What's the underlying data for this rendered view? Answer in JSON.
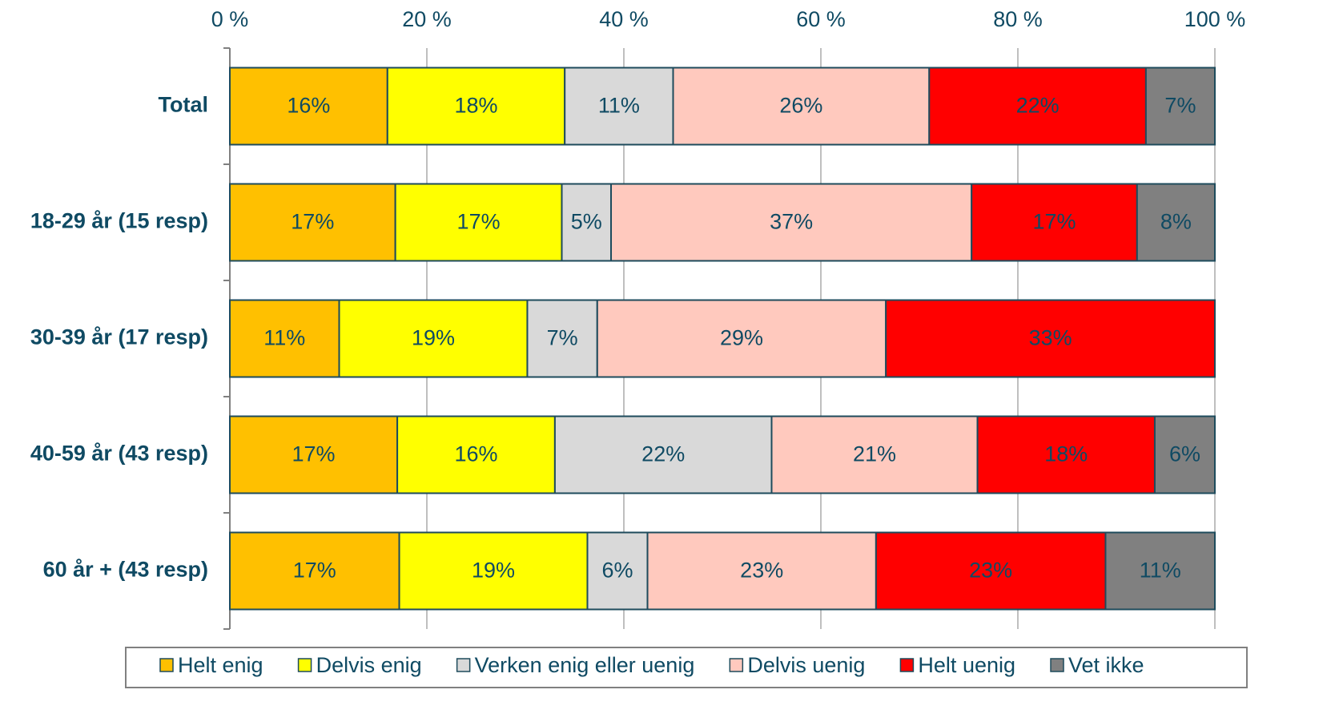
{
  "chart_data": {
    "type": "stacked-bar-horizontal",
    "categories": [
      "Total",
      "18-29 år (15 resp)",
      "30-39 år (17 resp)",
      "40-59 år (43 resp)",
      "60 år + (43 resp)"
    ],
    "xlim": [
      0,
      100
    ],
    "xticks": [
      {
        "value": 0,
        "label": "0 %"
      },
      {
        "value": 20,
        "label": "20 %"
      },
      {
        "value": 40,
        "label": "40 %"
      },
      {
        "value": 60,
        "label": "60 %"
      },
      {
        "value": 80,
        "label": "80 %"
      },
      {
        "value": 100,
        "label": "100 %"
      }
    ],
    "grid": true,
    "legend": "bottom",
    "series": [
      {
        "name": "Helt enig",
        "color": "#FFC000",
        "values": [
          16.0,
          16.8,
          11.1,
          17.0,
          17.2
        ],
        "value_labels": [
          "16%",
          "17%",
          "11%",
          "17%",
          "17%"
        ]
      },
      {
        "name": "Delvis enig",
        "color": "#FFFF00",
        "values": [
          18.0,
          16.9,
          19.1,
          16.0,
          19.1
        ],
        "value_labels": [
          "18%",
          "17%",
          "19%",
          "16%",
          "19%"
        ]
      },
      {
        "name": "Verken enig eller uenig",
        "color": "#D9D9D9",
        "values": [
          11.0,
          5.0,
          7.1,
          22.0,
          6.1
        ],
        "value_labels": [
          "11%",
          "5%",
          "7%",
          "22%",
          "6%"
        ]
      },
      {
        "name": "Delvis uenig",
        "color": "#FFC9BE",
        "values": [
          26.0,
          36.6,
          29.3,
          20.9,
          23.2
        ],
        "value_labels": [
          "26%",
          "37%",
          "29%",
          "21%",
          "23%"
        ]
      },
      {
        "name": "Helt uenig",
        "color": "#FF0000",
        "values": [
          22.0,
          16.8,
          33.4,
          18.0,
          23.3
        ],
        "value_labels": [
          "22%",
          "17%",
          "33%",
          "18%",
          "23%"
        ]
      },
      {
        "name": "Vet ikke",
        "color": "#808080",
        "values": [
          7.0,
          7.9,
          null,
          6.1,
          11.1
        ],
        "value_labels": [
          "7%",
          "8%",
          null,
          "6%",
          "11%"
        ]
      }
    ]
  }
}
